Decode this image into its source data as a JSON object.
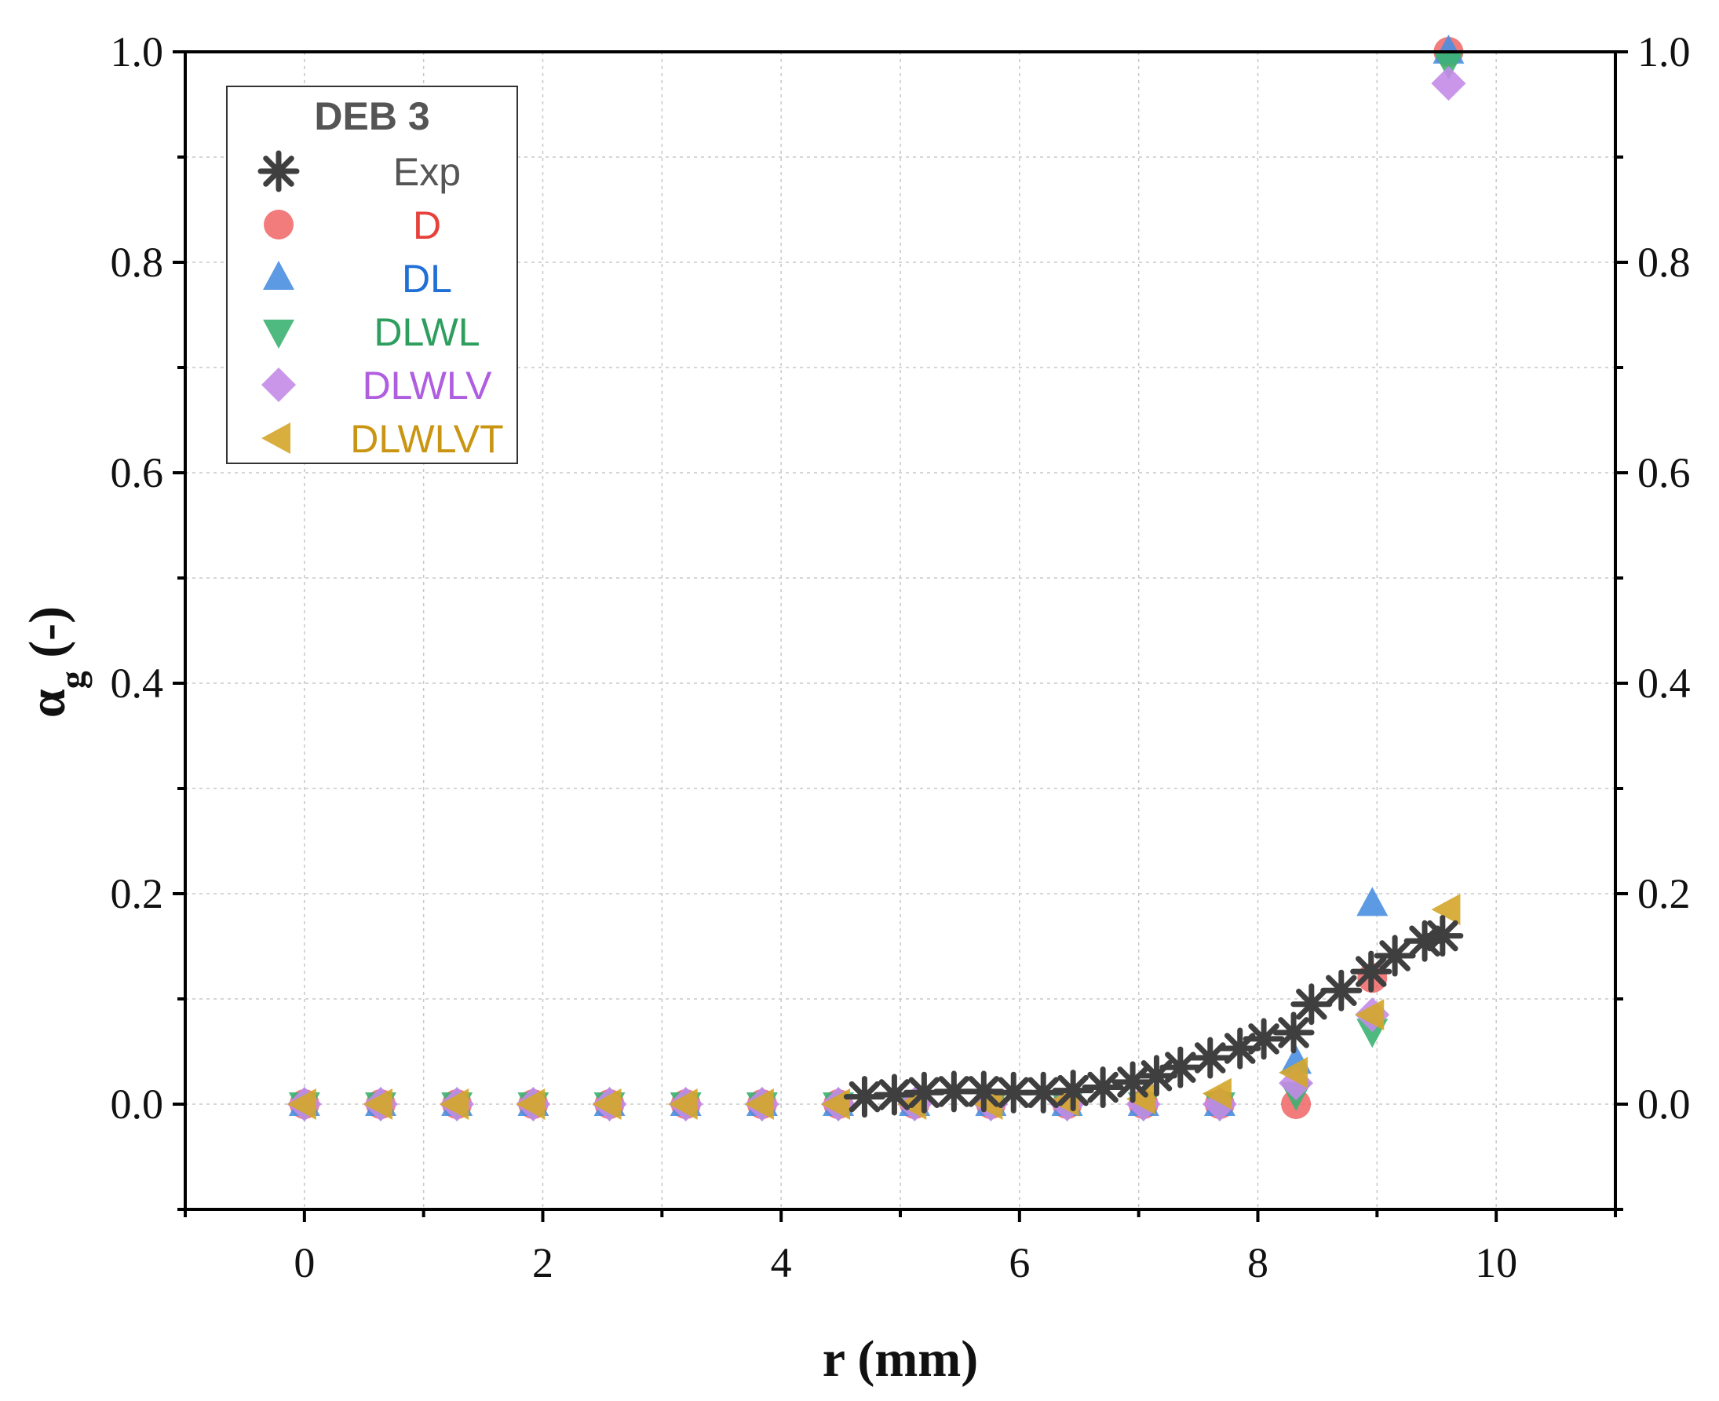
{
  "chart_data": {
    "type": "scatter",
    "title": "",
    "xlabel": "r (mm)",
    "ylabel": {
      "main": "α",
      "sub": "g",
      "suffix": " (-)"
    },
    "xlim": [
      -1,
      11
    ],
    "ylim": [
      -0.1,
      1.0
    ],
    "x_ticks": [
      0,
      2,
      4,
      6,
      8,
      10
    ],
    "y_ticks": [
      0.0,
      0.2,
      0.4,
      0.6,
      0.8,
      1.0
    ],
    "x_tick_labels": [
      "0",
      "2",
      "4",
      "6",
      "8",
      "10"
    ],
    "y_tick_labels": [
      "0.0",
      "0.2",
      "0.4",
      "0.6",
      "0.8",
      "1.0"
    ],
    "grid": true,
    "legend": {
      "title": "DEB 3",
      "position": "top-left"
    },
    "series": [
      {
        "name": "Exp",
        "marker": "asterisk",
        "color": "#3f3f3f",
        "x": [
          4.7,
          4.95,
          5.2,
          5.45,
          5.7,
          5.95,
          6.2,
          6.45,
          6.7,
          6.95,
          7.15,
          7.35,
          7.6,
          7.85,
          8.05,
          8.3,
          8.45,
          8.7,
          8.95,
          9.15,
          9.4,
          9.55
        ],
        "y": [
          0.007,
          0.009,
          0.011,
          0.012,
          0.012,
          0.011,
          0.011,
          0.013,
          0.016,
          0.021,
          0.027,
          0.035,
          0.044,
          0.053,
          0.062,
          0.068,
          0.095,
          0.108,
          0.126,
          0.141,
          0.155,
          0.16
        ]
      },
      {
        "name": "D",
        "marker": "circle",
        "color": "#f06464",
        "x": [
          0,
          0.64,
          1.28,
          1.92,
          2.56,
          3.2,
          3.84,
          4.48,
          5.12,
          5.76,
          6.4,
          7.04,
          7.68,
          8.32,
          8.96,
          9.6
        ],
        "y": [
          0,
          0,
          0,
          0,
          0,
          0,
          0,
          0,
          0,
          0,
          0,
          0,
          0,
          0.0,
          0.12,
          1.0
        ]
      },
      {
        "name": "DL",
        "marker": "triangle-up",
        "color": "#4a8fe0",
        "x": [
          0,
          0.64,
          1.28,
          1.92,
          2.56,
          3.2,
          3.84,
          4.48,
          5.12,
          5.76,
          6.4,
          7.04,
          7.68,
          8.32,
          8.96,
          9.6
        ],
        "y": [
          0,
          0,
          0,
          0,
          0,
          0,
          0,
          0,
          0,
          0,
          0,
          0,
          0,
          0.04,
          0.19,
          1.0
        ]
      },
      {
        "name": "DLWL",
        "marker": "triangle-down",
        "color": "#3cb371",
        "x": [
          0,
          0.64,
          1.28,
          1.92,
          2.56,
          3.2,
          3.84,
          4.48,
          5.12,
          5.76,
          6.4,
          7.04,
          7.68,
          8.32,
          8.96,
          9.6
        ],
        "y": [
          0,
          0,
          0,
          0,
          0,
          0,
          0,
          0,
          0,
          0,
          0,
          0,
          0,
          0.01,
          0.07,
          0.99
        ]
      },
      {
        "name": "DLWLV",
        "marker": "diamond",
        "color": "#c38be8",
        "x": [
          0,
          0.64,
          1.28,
          1.92,
          2.56,
          3.2,
          3.84,
          4.48,
          5.12,
          5.76,
          6.4,
          7.04,
          7.68,
          8.32,
          8.96,
          9.6
        ],
        "y": [
          0,
          0,
          0,
          0,
          0,
          0,
          0,
          0,
          0,
          0,
          0,
          0,
          0,
          0.02,
          0.085,
          0.97
        ]
      },
      {
        "name": "DLWLVT",
        "marker": "triangle-left",
        "color": "#d4a62a",
        "x": [
          0,
          0.64,
          1.28,
          1.92,
          2.56,
          3.2,
          3.84,
          4.48,
          5.12,
          5.76,
          6.4,
          7.04,
          7.68,
          8.32,
          8.96,
          9.6
        ],
        "y": [
          0,
          0,
          0,
          0,
          0,
          0,
          0,
          0,
          0,
          0,
          0.003,
          0.005,
          0.01,
          0.03,
          0.085,
          0.185
        ]
      }
    ]
  },
  "colors": {
    "exp": "#3f3f3f",
    "d": "#f06464",
    "dl": "#4a8fe0",
    "dlwl": "#3cb371",
    "dlwlv": "#c38be8",
    "dlwlvt": "#d4a62a",
    "legend_title": "#555555",
    "legend_exp_text": "#555555",
    "legend_d_text": "#e8403a",
    "legend_dl_text": "#1f6fd6",
    "legend_dlwl_text": "#2e9e5e",
    "legend_dlwlv_text": "#b05ee0",
    "legend_dlwlvt_text": "#c99512"
  }
}
